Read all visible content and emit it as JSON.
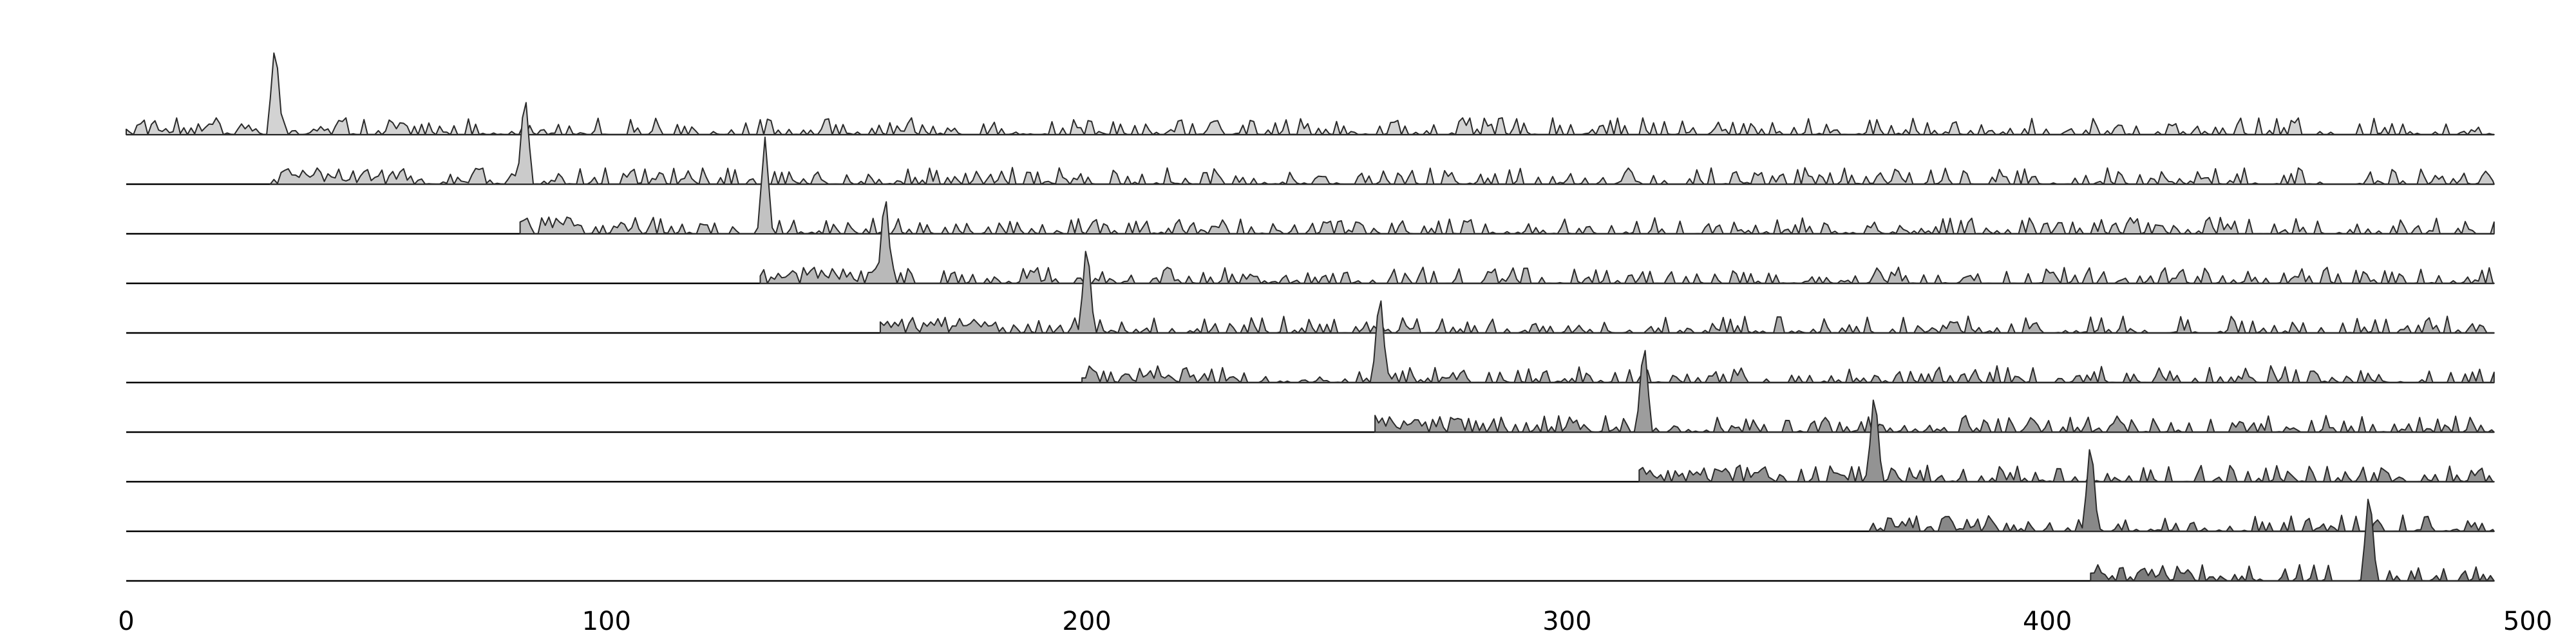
{
  "chart_data": {
    "type": "area",
    "title": "",
    "xlabel": "",
    "ylabel": "",
    "xlim": [
      0,
      500
    ],
    "x_ticks": [
      "0",
      "100",
      "200",
      "300",
      "400",
      "500"
    ],
    "grid": false,
    "legend": "none",
    "ridges": [
      {
        "start": 0,
        "peak": 31,
        "fill": "#d3d3d3"
      },
      {
        "start": 30,
        "peak": 83,
        "fill": "#cbcbcb"
      },
      {
        "start": 82,
        "peak": 133,
        "fill": "#c2c2c2"
      },
      {
        "start": 132,
        "peak": 158,
        "fill": "#b9b9b9"
      },
      {
        "start": 157,
        "peak": 200,
        "fill": "#b0b0b0"
      },
      {
        "start": 199,
        "peak": 261,
        "fill": "#a7a7a7"
      },
      {
        "start": 260,
        "peak": 316,
        "fill": "#9d9d9d"
      },
      {
        "start": 315,
        "peak": 364,
        "fill": "#939393"
      },
      {
        "start": 363,
        "peak": 409,
        "fill": "#888888"
      },
      {
        "start": 409,
        "peak": 467,
        "fill": "#7c7c7c"
      }
    ]
  }
}
